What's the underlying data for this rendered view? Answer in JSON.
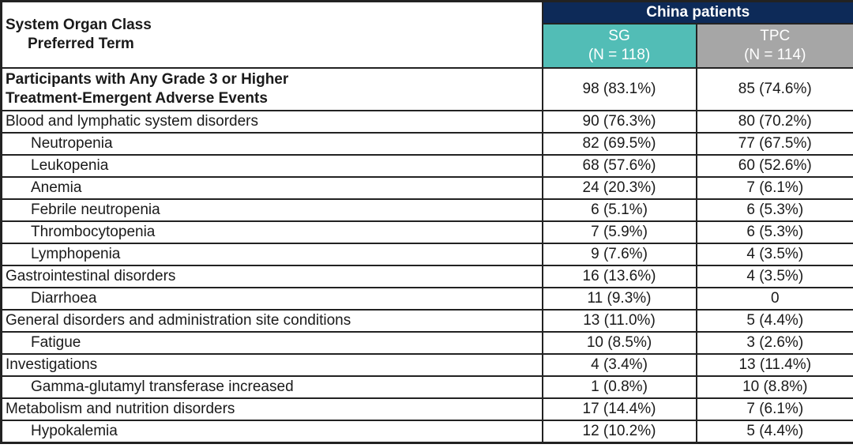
{
  "table": {
    "colors": {
      "group_header_bg": "#0D2A58",
      "sg_bg": "#52BDB6",
      "tpc_bg": "#A6A6A6",
      "header_text": "#FFFFFF",
      "body_text": "#1A1A1A",
      "border": "#222222"
    },
    "header": {
      "col1_line1": "System Organ Class",
      "col1_line2": "Preferred Term",
      "group_header": "China patients",
      "sg_label": "SG",
      "sg_n": "(N = 118)",
      "tpc_label": "TPC",
      "tpc_n": "(N = 114)"
    },
    "rows": [
      {
        "style": "summary",
        "lines": [
          "Participants with Any Grade 3 or Higher",
          "Treatment-Emergent Adverse Events"
        ],
        "sg": "98 (83.1%)",
        "tpc": "85 (74.6%)"
      },
      {
        "style": "soc",
        "lines": [
          "Blood and lymphatic system disorders"
        ],
        "sg": "90 (76.3%)",
        "tpc": "80 (70.2%)"
      },
      {
        "style": "pt",
        "lines": [
          "Neutropenia"
        ],
        "sg": "82 (69.5%)",
        "tpc": "77 (67.5%)"
      },
      {
        "style": "pt",
        "lines": [
          "Leukopenia"
        ],
        "sg": "68 (57.6%)",
        "tpc": "60 (52.6%)"
      },
      {
        "style": "pt",
        "lines": [
          "Anemia"
        ],
        "sg": "24 (20.3%)",
        "tpc": "7 (6.1%)"
      },
      {
        "style": "pt",
        "lines": [
          "Febrile neutropenia"
        ],
        "sg": "6 (5.1%)",
        "tpc": "6 (5.3%)"
      },
      {
        "style": "pt",
        "lines": [
          "Thrombocytopenia"
        ],
        "sg": "7 (5.9%)",
        "tpc": "6 (5.3%)"
      },
      {
        "style": "pt",
        "lines": [
          "Lymphopenia"
        ],
        "sg": "9 (7.6%)",
        "tpc": "4 (3.5%)"
      },
      {
        "style": "soc",
        "lines": [
          "Gastrointestinal disorders"
        ],
        "sg": "16 (13.6%)",
        "tpc": "4 (3.5%)"
      },
      {
        "style": "pt",
        "lines": [
          "Diarrhoea"
        ],
        "sg": "11 (9.3%)",
        "tpc": "0"
      },
      {
        "style": "soc",
        "lines": [
          "General disorders and administration site conditions"
        ],
        "sg": "13 (11.0%)",
        "tpc": "5 (4.4%)"
      },
      {
        "style": "pt",
        "lines": [
          "Fatigue"
        ],
        "sg": "10 (8.5%)",
        "tpc": "3 (2.6%)"
      },
      {
        "style": "soc",
        "lines": [
          "Investigations"
        ],
        "sg": "4 (3.4%)",
        "tpc": "13 (11.4%)"
      },
      {
        "style": "pt",
        "lines": [
          "Gamma-glutamyl transferase increased"
        ],
        "sg": "1 (0.8%)",
        "tpc": "10 (8.8%)"
      },
      {
        "style": "soc",
        "lines": [
          "Metabolism and nutrition disorders"
        ],
        "sg": "17 (14.4%)",
        "tpc": "7 (6.1%)"
      },
      {
        "style": "pt",
        "lines": [
          "Hypokalemia"
        ],
        "sg": "12 (10.2%)",
        "tpc": "5 (4.4%)"
      }
    ]
  }
}
